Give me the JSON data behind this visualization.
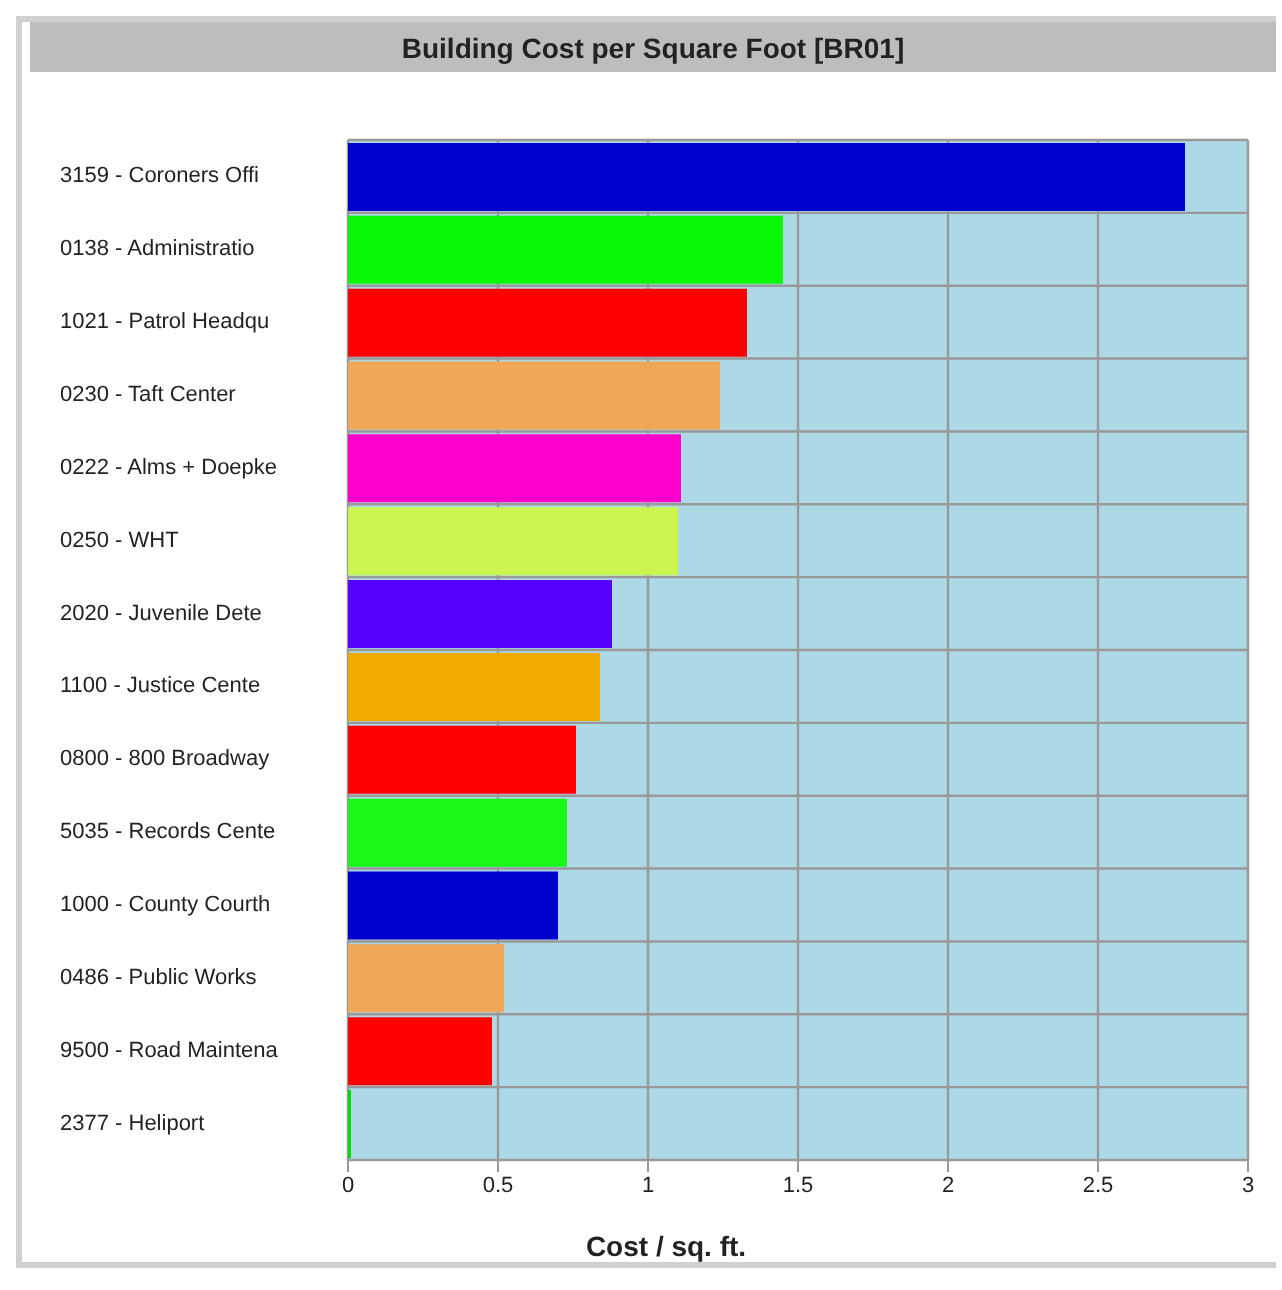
{
  "chart_data": {
    "type": "bar",
    "orientation": "horizontal",
    "title": "Building Cost per Square Foot [BR01]",
    "xlabel": "Cost / sq. ft.",
    "categories": [
      "3159 - Coroners Offi",
      "0138 - Administratio",
      "1021 - Patrol Headqu",
      "0230 - Taft Center",
      "0222 - Alms + Doepke",
      "0250 - WHT",
      "2020 - Juvenile Dete",
      "1100 - Justice Cente",
      "0800 - 800 Broadway",
      "5035 - Records Cente",
      "1000 - County Courth",
      "0486 - Public Works",
      "9500 - Road Maintena",
      "2377 - Heliport"
    ],
    "values": [
      2.79,
      1.45,
      1.33,
      1.24,
      1.11,
      1.1,
      0.88,
      0.84,
      0.76,
      0.73,
      0.7,
      0.52,
      0.48,
      0.01
    ],
    "colors": [
      "#0000cc",
      "#08f808",
      "#ff0000",
      "#f0a858",
      "#ff00cc",
      "#ccf550",
      "#5500ff",
      "#f0aa00",
      "#ff0000",
      "#1af81a",
      "#0000cc",
      "#f0a858",
      "#ff0000",
      "#00dd00"
    ],
    "xlim": [
      0,
      3
    ],
    "xticks": [
      0,
      0.5,
      1,
      1.5,
      2,
      2.5,
      3
    ],
    "grid": true
  }
}
